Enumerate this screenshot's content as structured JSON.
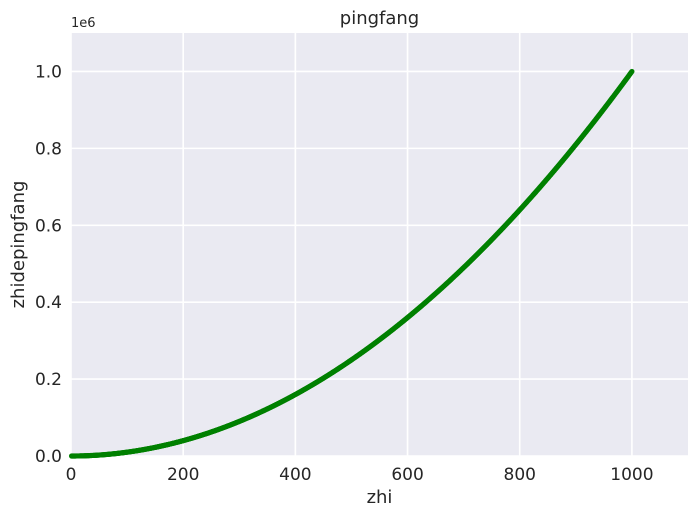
{
  "chart_data": {
    "type": "scatter",
    "title": "pingfang",
    "xlabel": "zhi",
    "ylabel": "zhidepingfang",
    "y_offset_label": "1e6",
    "xlim": [
      0,
      1100
    ],
    "ylim": [
      0,
      1.1
    ],
    "x_ticks": [
      0,
      200,
      400,
      600,
      800,
      1000
    ],
    "x_tick_labels": [
      "0",
      "200",
      "400",
      "600",
      "800",
      "1000"
    ],
    "y_ticks": [
      0.0,
      0.2,
      0.4,
      0.6,
      0.8,
      1.0
    ],
    "y_tick_labels": [
      "0.0",
      "0.2",
      "0.4",
      "0.6",
      "0.8",
      "1.0"
    ],
    "grid": true,
    "series": [
      {
        "color": "#008000",
        "x_start": 1,
        "x_end": 1000,
        "function": "y = x^2 (y shown in units of 1e6)"
      }
    ],
    "colors": {
      "plot_background": "#eaeaf2",
      "grid": "#ffffff",
      "points": "#008000"
    }
  }
}
